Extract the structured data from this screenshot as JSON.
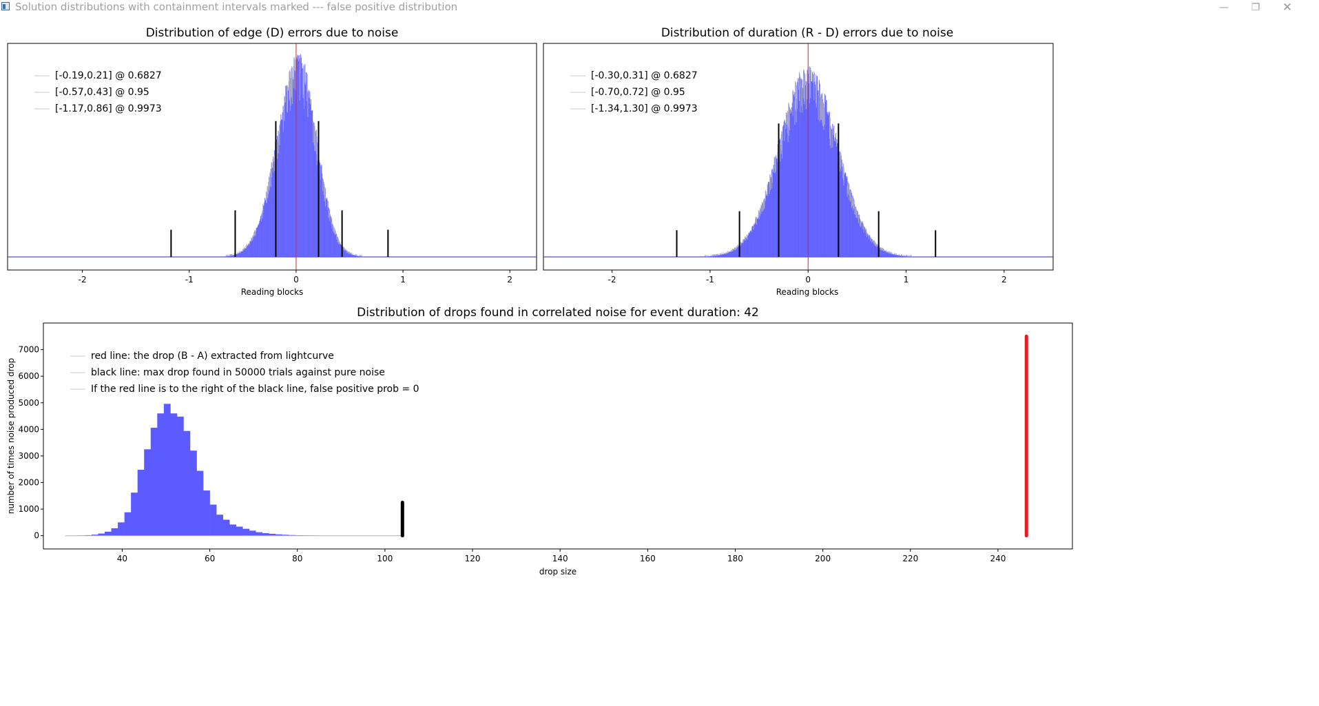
{
  "window": {
    "title": "Solution distributions with containment intervals marked --- false positive distribution",
    "minimize_icon": "minimize-icon",
    "restore_icon": "restore-icon",
    "close_icon": "close-icon"
  },
  "colors": {
    "histogram": "#5b5bff",
    "histogram_edge": "#a8a8cc",
    "reference_line": "#e02020",
    "marker": "#000000",
    "legend_swatch": "#c8c8c8"
  },
  "chart_data": [
    {
      "id": "edge",
      "type": "bar",
      "title": "Distribution of edge (D) errors due to noise",
      "xlabel": "Reading blocks",
      "ylabel": "",
      "xlim": [
        -2.7,
        2.25
      ],
      "ylim": [
        0,
        1.1
      ],
      "xticks": [
        -2,
        -1,
        0,
        1,
        2
      ],
      "show_yticks": false,
      "distribution": {
        "center": 0.02,
        "sigma_left": 0.2,
        "sigma_right": 0.17,
        "peak": 1.0,
        "bin_width": 0.005
      },
      "reference_line_x": 0,
      "interval_markers": [
        {
          "x": -0.19,
          "height": 0.7
        },
        {
          "x": 0.21,
          "height": 0.7
        },
        {
          "x": -0.57,
          "height": 0.24
        },
        {
          "x": 0.43,
          "height": 0.24
        },
        {
          "x": -1.17,
          "height": 0.14
        },
        {
          "x": 0.86,
          "height": 0.14
        }
      ],
      "legend": [
        "[-0.19,0.21] @ 0.6827",
        "[-0.57,0.43] @ 0.95",
        "[-1.17,0.86] @ 0.9973"
      ],
      "legend_position": "top-left"
    },
    {
      "id": "duration",
      "type": "bar",
      "title": "Distribution of duration (R - D) errors due to noise",
      "xlabel": "Reading blocks",
      "ylabel": "",
      "xlim": [
        -2.7,
        2.5
      ],
      "ylim": [
        0,
        1.12
      ],
      "xticks": [
        -2,
        -1,
        0,
        1,
        2
      ],
      "show_yticks": false,
      "distribution": {
        "center": 0.0,
        "sigma_left": 0.3,
        "sigma_right": 0.3,
        "peak": 0.95,
        "bin_width": 0.005
      },
      "reference_line_x": 0,
      "interval_markers": [
        {
          "x": -0.3,
          "height": 0.7
        },
        {
          "x": 0.31,
          "height": 0.7
        },
        {
          "x": -0.7,
          "height": 0.24
        },
        {
          "x": 0.72,
          "height": 0.24
        },
        {
          "x": -1.34,
          "height": 0.14
        },
        {
          "x": 1.3,
          "height": 0.14
        }
      ],
      "legend": [
        "[-0.30,0.31] @ 0.6827",
        "[-0.70,0.72] @ 0.95",
        "[-1.34,1.30] @ 0.9973"
      ],
      "legend_position": "top-left"
    },
    {
      "id": "drops",
      "type": "bar",
      "title": "Distribution of drops found in correlated noise for event duration: 42",
      "xlabel": "drop size",
      "ylabel": "number of times noise produced drop",
      "xlim": [
        22,
        257
      ],
      "ylim": [
        -500,
        8000
      ],
      "xticks": [
        40,
        60,
        80,
        100,
        120,
        140,
        160,
        180,
        200,
        220,
        240
      ],
      "yticks": [
        0,
        1000,
        2000,
        3000,
        4000,
        5000,
        6000,
        7000
      ],
      "show_yticks": true,
      "histogram": {
        "bin_start": 28.5,
        "bin_width": 1.5,
        "values": [
          5,
          10,
          20,
          40,
          80,
          150,
          280,
          500,
          880,
          1620,
          2480,
          3250,
          4060,
          4600,
          4960,
          4600,
          4480,
          3940,
          3200,
          2440,
          1700,
          1170,
          790,
          600,
          420,
          340,
          260,
          190,
          130,
          95,
          70,
          50,
          35,
          25,
          18,
          12,
          8,
          5
        ]
      },
      "tail_end": 104,
      "black_line": {
        "x": 104,
        "y_end": 1250
      },
      "red_line": {
        "x": 246.5,
        "y_end": 7500
      },
      "legend": [
        "red line: the drop (B - A) extracted from lightcurve",
        "black line: max drop found in 50000 trials against pure noise",
        "If the red line is to the right of the black line, false positive prob = 0"
      ],
      "legend_position": "top-left"
    }
  ]
}
